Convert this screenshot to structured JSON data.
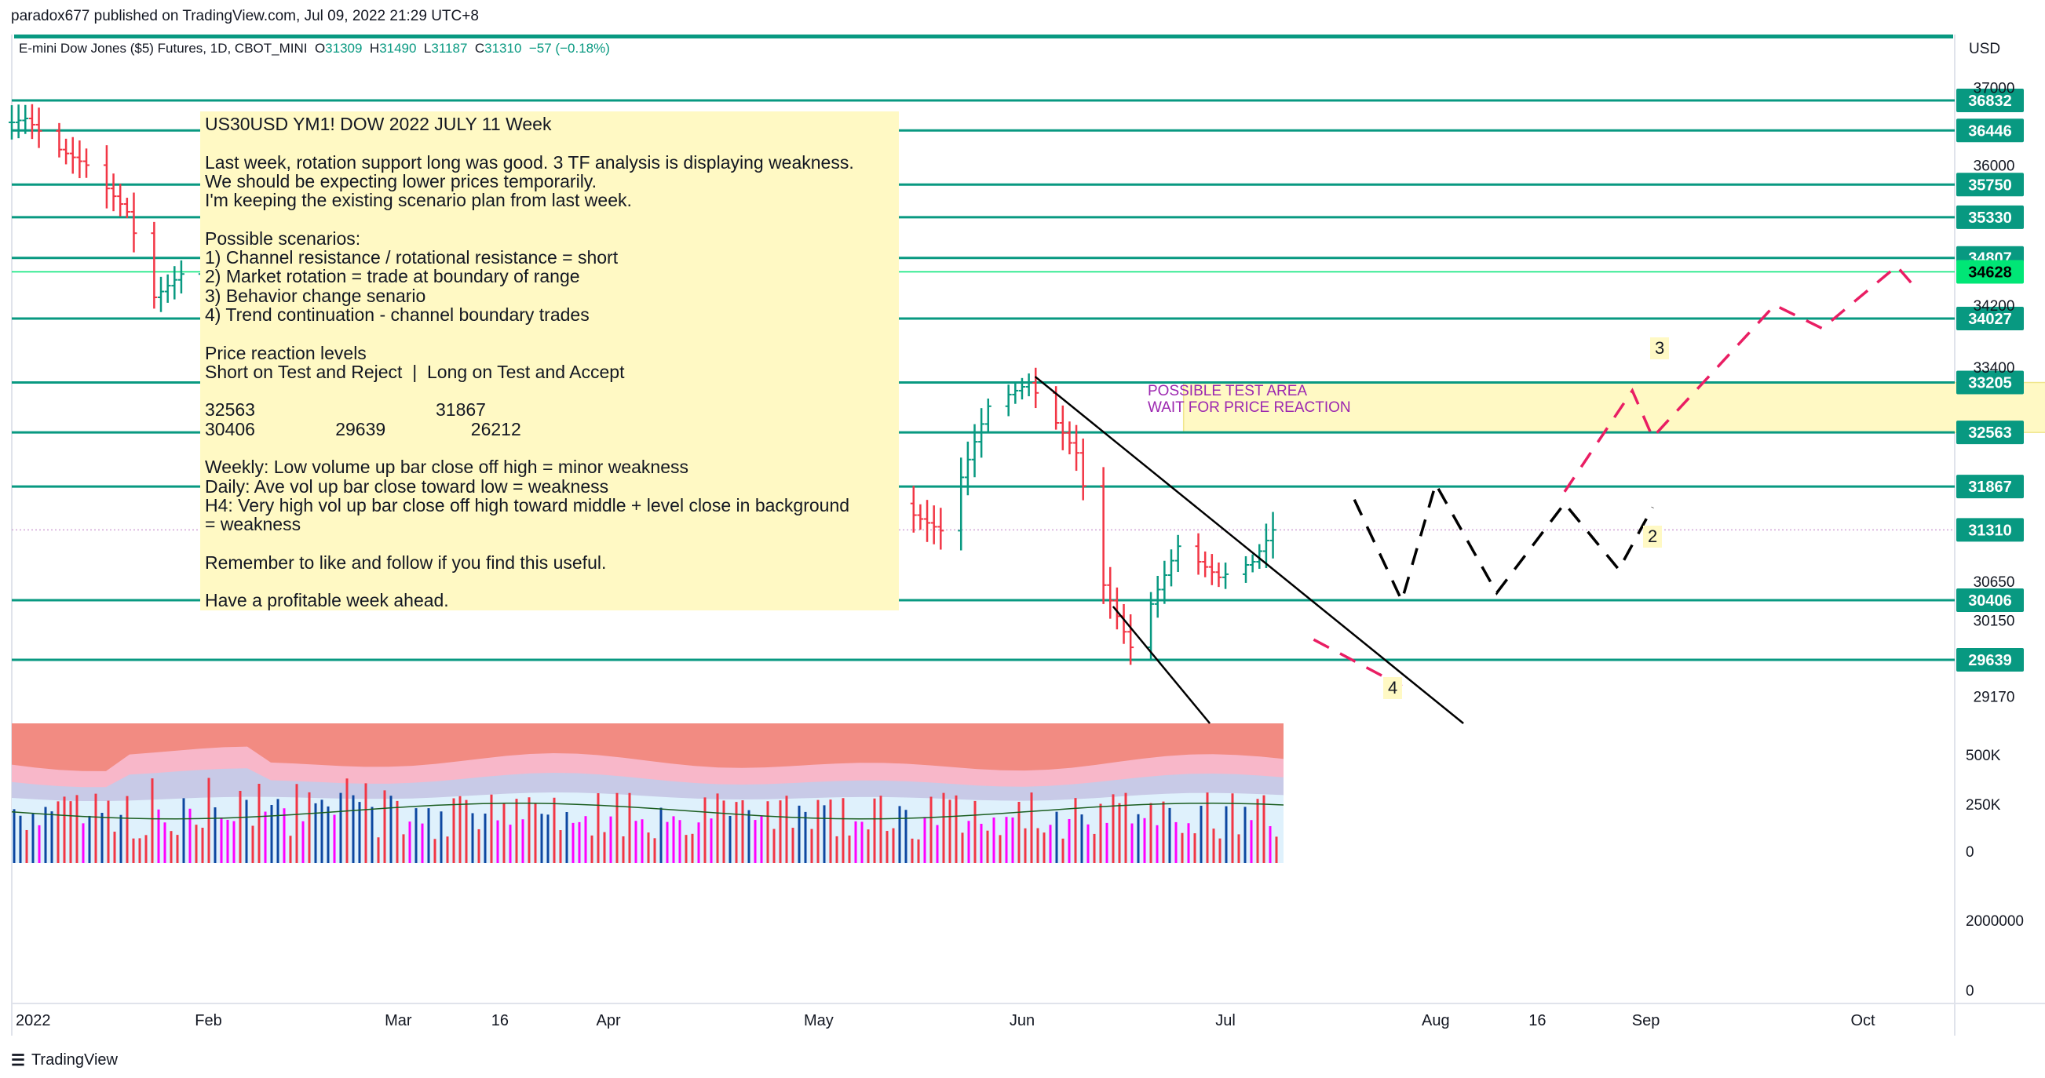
{
  "header": {
    "published": "paradox677 published on TradingView.com, Jul 09, 2022 21:29 UTC+8",
    "symbol": "E-mini Dow Jones ($5) Futures, 1D, CBOT_MINI",
    "open_label": "O",
    "open": "31309",
    "high_label": "H",
    "high": "31490",
    "low_label": "L",
    "low": "31187",
    "close_label": "C",
    "close": "31310",
    "change": "−57 (−0.18%)",
    "currency": "USD"
  },
  "note_text": "US30USD YM1! DOW 2022 JULY 11 Week\n\nLast week, rotation support long was good. 3 TF analysis is displaying weakness.\nWe should be expecting lower prices temporarily.\nI'm keeping the existing scenario plan from last week.\n\nPossible scenarios:\n1) Channel resistance / rotational resistance = short\n2) Market rotation = trade at boundary of range\n3) Behavior change senario\n4) Trend continuation - channel boundary trades\n\nPrice reaction levels\nShort on Test and Reject  |  Long on Test and Accept\n\n32563                                    31867\n30406                29639                 26212\n\nWeekly: Low volume up bar close off high = minor weakness\nDaily: Ave vol up bar close toward low = weakness\nH4: Very high vol up bar close off high toward middle + level close in background\n= weakness\n\nRemember to like and follow if you find this useful.\n\nHave a profitable week ahead.",
  "zone_text": "POSSIBLE TEST AREA\nWAIT FOR PRICE REACTION",
  "wave_labels": [
    "2",
    "3",
    "4"
  ],
  "footer": {
    "brand": "TradingView"
  },
  "colors": {
    "teal": "#089981",
    "green_level": "#00e676",
    "red": "#f23645",
    "magenta": "#e91e63",
    "zone": "#fff9c4",
    "volume_bg": "#f28b82"
  },
  "chart_data": {
    "type": "bar",
    "price_axis_ticks": [
      "37000",
      "36000",
      "34200",
      "33400",
      "30650",
      "30150",
      "29170"
    ],
    "price_levels": [
      {
        "label": "36832",
        "value": 36832
      },
      {
        "label": "36446",
        "value": 36446
      },
      {
        "label": "35750",
        "value": 35750
      },
      {
        "label": "35330",
        "value": 35330
      },
      {
        "label": "34807",
        "value": 34807
      },
      {
        "label": "34628",
        "value": 34628,
        "highlight": true
      },
      {
        "label": "34027",
        "value": 34027
      },
      {
        "label": "33205",
        "value": 33205
      },
      {
        "label": "32563",
        "value": 32563
      },
      {
        "label": "31867",
        "value": 31867
      },
      {
        "label": "31310",
        "value": 31310,
        "current": true
      },
      {
        "label": "30406",
        "value": 30406
      },
      {
        "label": "29639",
        "value": 29639
      }
    ],
    "time_labels": [
      {
        "label": "2022",
        "date": "2022-01-03"
      },
      {
        "label": "Feb",
        "date": "2022-02-01"
      },
      {
        "label": "Mar",
        "date": "2022-03-01"
      },
      {
        "label": "16",
        "date": "2022-03-16"
      },
      {
        "label": "Apr",
        "date": "2022-04-01"
      },
      {
        "label": "May",
        "date": "2022-05-02"
      },
      {
        "label": "Jun",
        "date": "2022-06-01"
      },
      {
        "label": "Jul",
        "date": "2022-07-01"
      },
      {
        "label": "Aug",
        "date": "2022-08-01"
      },
      {
        "label": "16",
        "date": "2022-08-16"
      },
      {
        "label": "Sep",
        "date": "2022-09-01"
      },
      {
        "label": "Oct",
        "date": "2022-10-03"
      }
    ],
    "volume_axis_ticks": [
      "500K",
      "250K",
      "0"
    ],
    "lower_axis_ticks": [
      "2000000",
      "0"
    ],
    "price_path": [
      [
        "2022-01-03",
        36550
      ],
      [
        "2022-01-05",
        36600
      ],
      [
        "2022-01-10",
        36200
      ],
      [
        "2022-01-14",
        36000
      ],
      [
        "2022-01-20",
        35400
      ],
      [
        "2022-01-24",
        34300
      ],
      [
        "2022-01-28",
        34600
      ],
      [
        "2022-02-01",
        35300
      ],
      [
        "2022-02-09",
        35700
      ],
      [
        "2022-02-16",
        34900
      ],
      [
        "2022-02-24",
        33400
      ],
      [
        "2022-03-01",
        33300
      ],
      [
        "2022-03-08",
        32700
      ],
      [
        "2022-03-16",
        33900
      ],
      [
        "2022-03-29",
        35200
      ],
      [
        "2022-04-05",
        34600
      ],
      [
        "2022-04-14",
        34400
      ],
      [
        "2022-04-22",
        33800
      ],
      [
        "2022-05-02",
        33000
      ],
      [
        "2022-05-12",
        31700
      ],
      [
        "2022-05-20",
        31300
      ],
      [
        "2022-05-27",
        32900
      ],
      [
        "2022-06-02",
        33200
      ],
      [
        "2022-06-09",
        32300
      ],
      [
        "2022-06-13",
        30600
      ],
      [
        "2022-06-17",
        29800
      ],
      [
        "2022-06-24",
        31100
      ],
      [
        "2022-06-30",
        30700
      ],
      [
        "2022-07-05",
        30900
      ],
      [
        "2022-07-08",
        31310
      ]
    ],
    "projections": [
      {
        "color": "black",
        "points": [
          [
            "2022-07-20",
            31700
          ],
          [
            "2022-07-27",
            30400
          ],
          [
            "2022-08-01",
            31900
          ],
          [
            "2022-08-10",
            30500
          ],
          [
            "2022-08-20",
            31650
          ],
          [
            "2022-08-28",
            30800
          ],
          [
            "2022-09-02",
            31600
          ]
        ]
      },
      {
        "color": "magenta",
        "points": [
          [
            "2022-08-20",
            31800
          ],
          [
            "2022-08-30",
            33100
          ],
          [
            "2022-09-02",
            32500
          ],
          [
            "2022-09-20",
            34200
          ],
          [
            "2022-09-27",
            33900
          ],
          [
            "2022-10-08",
            34700
          ],
          [
            "2022-10-11",
            34400
          ]
        ]
      },
      {
        "color": "magenta",
        "points": [
          [
            "2022-07-14",
            29900
          ],
          [
            "2022-07-27",
            29300
          ]
        ]
      }
    ],
    "channel": {
      "upper": [
        [
          "2022-06-02",
          33200
        ],
        [
          "2022-08-03",
          28900
        ]
      ],
      "lower": [
        [
          "2022-06-15",
          30200
        ],
        [
          "2022-07-01",
          28900
        ]
      ]
    },
    "test_zone": {
      "from": "2022-06-10",
      "to": "2022-10-31",
      "low": 32563,
      "high": 33205
    },
    "volume_avg_k": 240
  }
}
